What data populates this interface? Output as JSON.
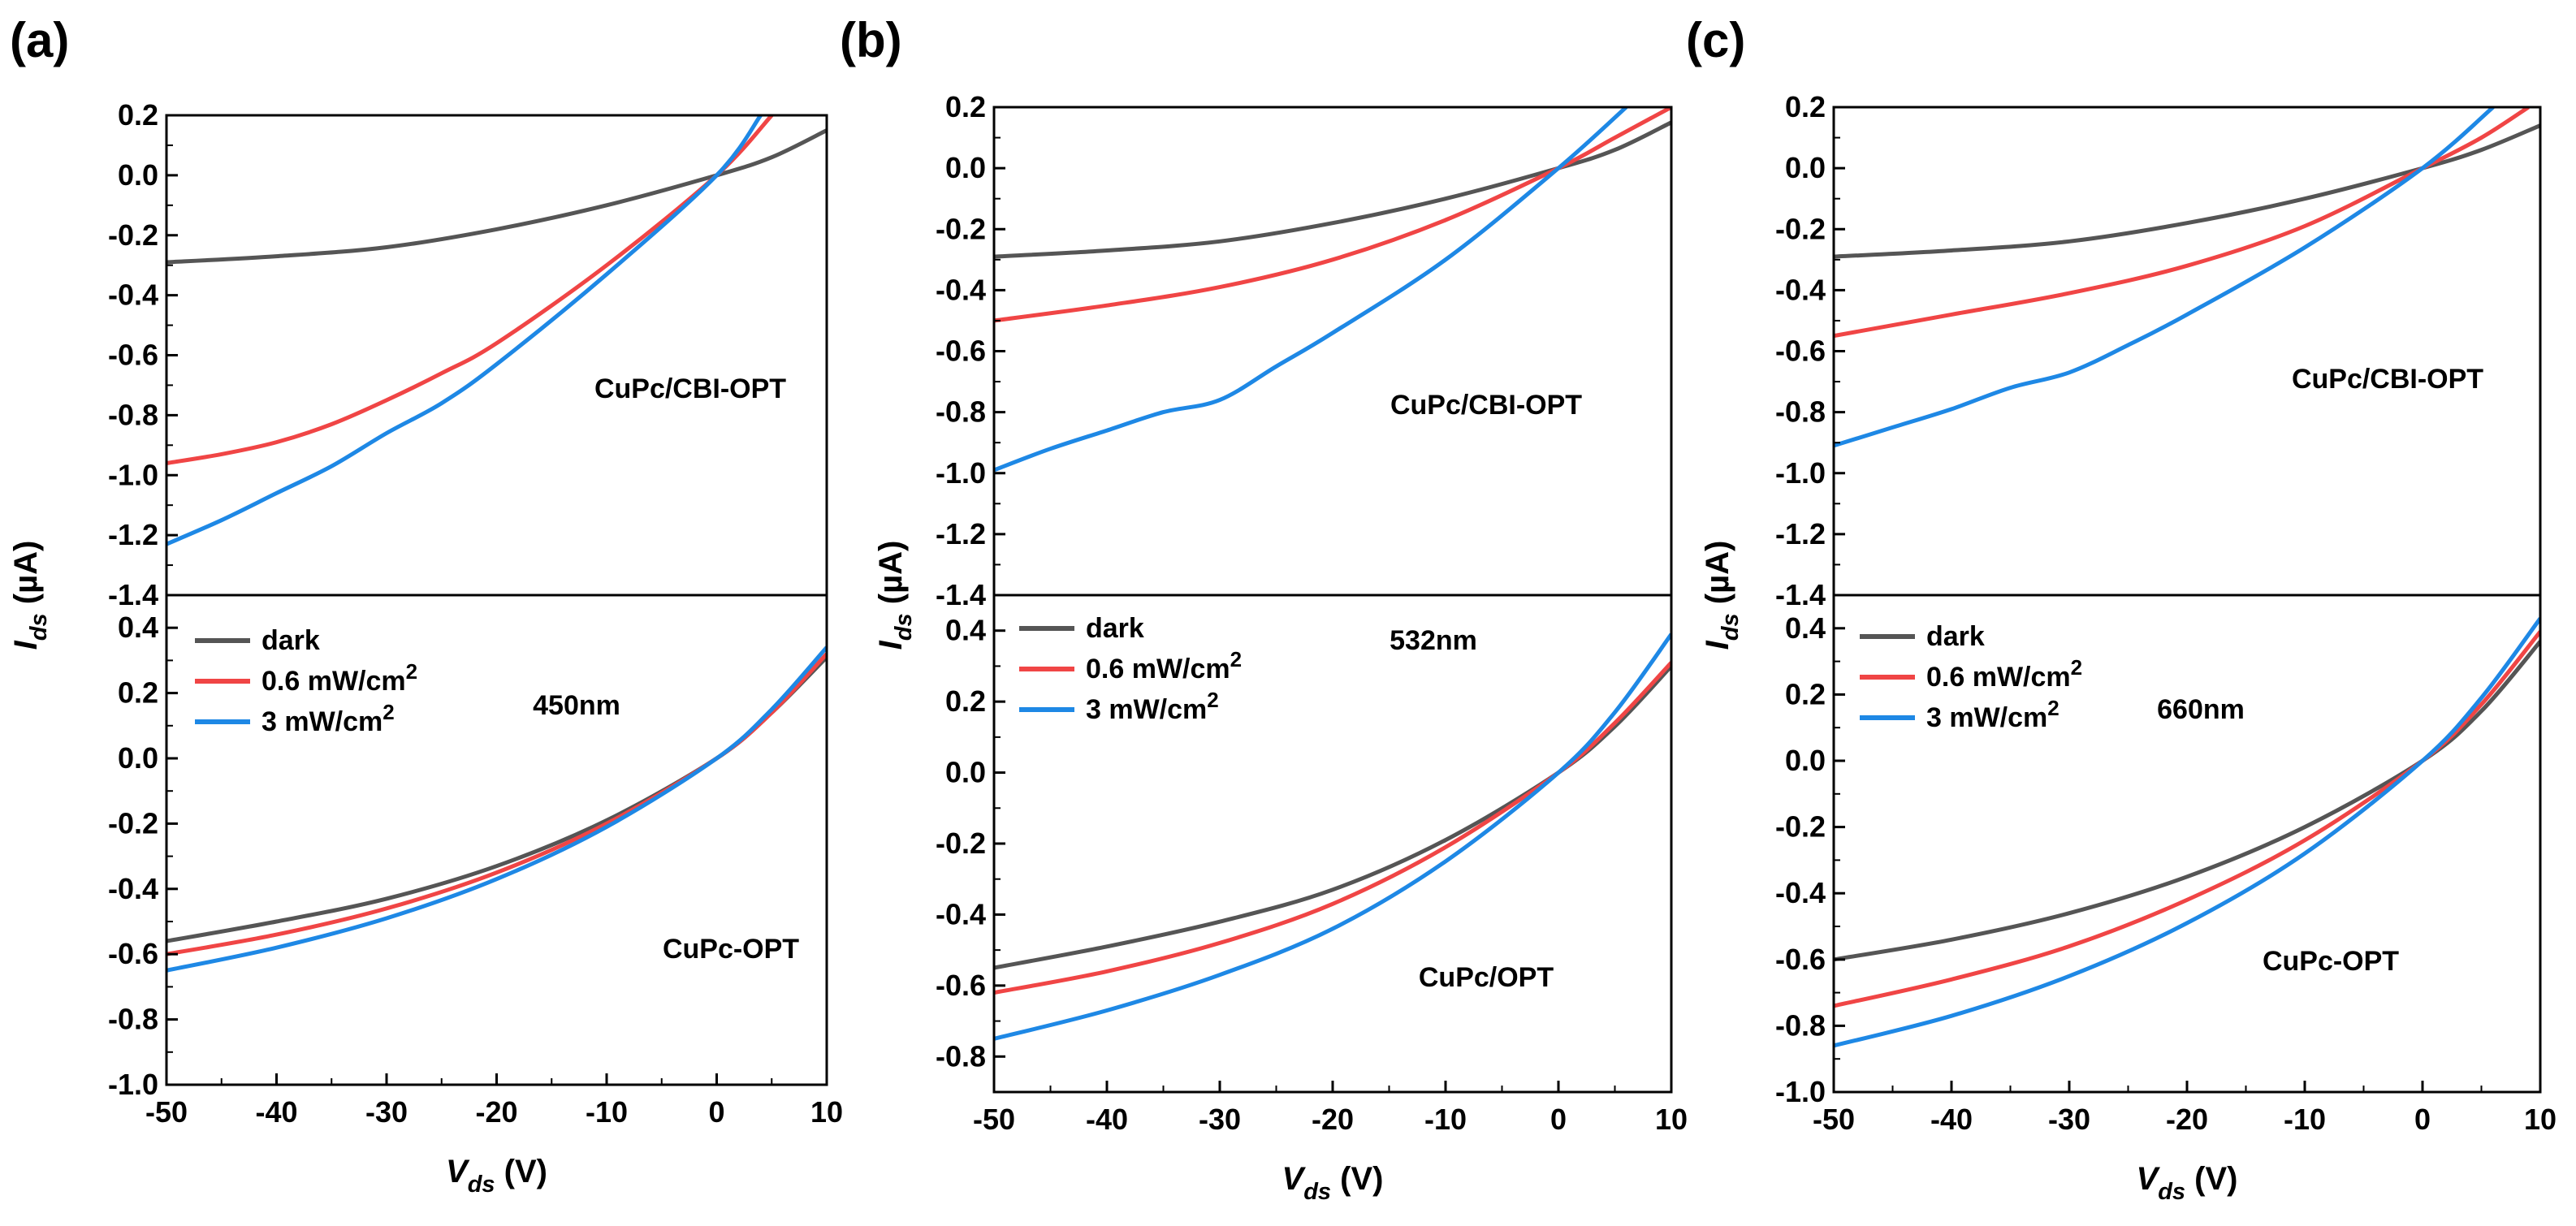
{
  "chart_data": [
    {
      "id": "a",
      "panel_label": "(a)",
      "type": "line",
      "xlabel": "V",
      "xlabel_sub": "ds",
      "xlabel_unit": " (V)",
      "ylabel": "I",
      "ylabel_sub": "ds",
      "ylabel_unit": " (µA)",
      "xlim": [
        -50,
        10
      ],
      "x_ticks": [
        -50,
        -40,
        -30,
        -20,
        -10,
        0,
        10
      ],
      "x_tick_labels": [
        "-50",
        "-40",
        "-30",
        "-20",
        "-10",
        "0",
        "10"
      ],
      "top": {
        "annotation": "CuPc/CBI-OPT",
        "ylim": [
          -1.4,
          0.2
        ],
        "y_ticks": [
          -1.4,
          -1.2,
          -1.0,
          -0.8,
          -0.6,
          -0.4,
          -0.2,
          0.0,
          0.2
        ],
        "y_tick_labels": [
          "-1.4",
          "-1.2",
          "-1.0",
          "-0.8",
          "-0.6",
          "-0.4",
          "-0.2",
          "0.0",
          "0.2"
        ],
        "series": [
          {
            "name": "dark",
            "color": "#555555",
            "x": [
              -50,
              -40,
              -30,
              -20,
              -10,
              0,
              5,
              10
            ],
            "y": [
              -0.29,
              -0.27,
              -0.24,
              -0.18,
              -0.1,
              0,
              0.06,
              0.15
            ]
          },
          {
            "name": "0.6 mW/cm2",
            "color": "#f04545",
            "x": [
              -50,
              -45,
              -40,
              -35,
              -30,
              -25,
              -20,
              -10,
              0,
              5
            ],
            "y": [
              -0.96,
              -0.93,
              -0.89,
              -0.83,
              -0.75,
              -0.66,
              -0.56,
              -0.3,
              0,
              0.2
            ]
          },
          {
            "name": "3 mW/cm2",
            "color": "#1e88e5",
            "x": [
              -50,
              -45,
              -40,
              -35,
              -30,
              -25,
              -20,
              -10,
              0,
              4
            ],
            "y": [
              -1.23,
              -1.15,
              -1.06,
              -0.97,
              -0.86,
              -0.76,
              -0.63,
              -0.33,
              0,
              0.2
            ]
          }
        ]
      },
      "bottom": {
        "annotation": "CuPc-OPT",
        "wavelength": "450nm",
        "ylim": [
          -1.0,
          0.5
        ],
        "y_ticks": [
          -1.0,
          -0.8,
          -0.6,
          -0.4,
          -0.2,
          0.0,
          0.2,
          0.4
        ],
        "y_tick_labels": [
          "-1.0",
          "-0.8",
          "-0.6",
          "-0.4",
          "-0.2",
          "0.0",
          "0.2",
          "0.4"
        ],
        "series": [
          {
            "name": "dark",
            "color": "#555555",
            "x": [
              -50,
              -40,
              -30,
              -20,
              -10,
              0,
              5,
              10
            ],
            "y": [
              -0.56,
              -0.5,
              -0.43,
              -0.33,
              -0.19,
              0,
              0.14,
              0.31
            ]
          },
          {
            "name": "0.6 mW/cm2",
            "color": "#f04545",
            "x": [
              -50,
              -40,
              -30,
              -20,
              -10,
              0,
              5,
              10
            ],
            "y": [
              -0.6,
              -0.54,
              -0.46,
              -0.35,
              -0.2,
              0,
              0.14,
              0.32
            ]
          },
          {
            "name": "3 mW/cm2",
            "color": "#1e88e5",
            "x": [
              -50,
              -40,
              -30,
              -20,
              -10,
              0,
              5,
              10
            ],
            "y": [
              -0.65,
              -0.58,
              -0.49,
              -0.37,
              -0.21,
              0,
              0.15,
              0.34
            ]
          }
        ]
      }
    },
    {
      "id": "b",
      "panel_label": "(b)",
      "type": "line",
      "xlabel": "V",
      "xlabel_sub": "ds",
      "xlabel_unit": " (V)",
      "ylabel": "I",
      "ylabel_sub": "ds",
      "ylabel_unit": " (µA)",
      "xlim": [
        -50,
        10
      ],
      "x_ticks": [
        -50,
        -40,
        -30,
        -20,
        -10,
        0,
        10
      ],
      "x_tick_labels": [
        "-50",
        "-40",
        "-30",
        "-20",
        "-10",
        "0",
        "10"
      ],
      "top": {
        "annotation": "CuPc/CBI-OPT",
        "ylim": [
          -1.4,
          0.2
        ],
        "y_ticks": [
          -1.4,
          -1.2,
          -1.0,
          -0.8,
          -0.6,
          -0.4,
          -0.2,
          0.0,
          0.2
        ],
        "y_tick_labels": [
          "-1.4",
          "-1.2",
          "-1.0",
          "-0.8",
          "-0.6",
          "-0.4",
          "-0.2",
          "0.0",
          "0.2"
        ],
        "series": [
          {
            "name": "dark",
            "color": "#555555",
            "x": [
              -50,
              -40,
              -30,
              -20,
              -10,
              0,
              5,
              10
            ],
            "y": [
              -0.29,
              -0.27,
              -0.24,
              -0.18,
              -0.1,
              0,
              0.06,
              0.15
            ]
          },
          {
            "name": "0.6 mW/cm2",
            "color": "#f04545",
            "x": [
              -50,
              -40,
              -30,
              -20,
              -10,
              0,
              5,
              10
            ],
            "y": [
              -0.5,
              -0.45,
              -0.39,
              -0.3,
              -0.17,
              0,
              0.1,
              0.2
            ]
          },
          {
            "name": "3 mW/cm2",
            "color": "#1e88e5",
            "x": [
              -50,
              -45,
              -40,
              -35,
              -30,
              -25,
              -20,
              -10,
              0,
              6
            ],
            "y": [
              -0.99,
              -0.92,
              -0.86,
              -0.8,
              -0.76,
              -0.65,
              -0.54,
              -0.3,
              0,
              0.2
            ]
          }
        ]
      },
      "bottom": {
        "annotation": "CuPc/OPT",
        "wavelength": "532nm",
        "ylim": [
          -0.9,
          0.5
        ],
        "y_ticks": [
          -0.8,
          -0.6,
          -0.4,
          -0.2,
          0.0,
          0.2,
          0.4
        ],
        "y_tick_labels": [
          "-0.8",
          "-0.6",
          "-0.4",
          "-0.2",
          "0.0",
          "0.2",
          "0.4"
        ],
        "series": [
          {
            "name": "dark",
            "color": "#555555",
            "x": [
              -50,
              -40,
              -30,
              -20,
              -10,
              0,
              5,
              10
            ],
            "y": [
              -0.55,
              -0.49,
              -0.42,
              -0.33,
              -0.19,
              0,
              0.13,
              0.3
            ]
          },
          {
            "name": "0.6 mW/cm2",
            "color": "#f04545",
            "x": [
              -50,
              -40,
              -30,
              -20,
              -10,
              0,
              5,
              10
            ],
            "y": [
              -0.62,
              -0.56,
              -0.48,
              -0.37,
              -0.21,
              0,
              0.14,
              0.31
            ]
          },
          {
            "name": "3 mW/cm2",
            "color": "#1e88e5",
            "x": [
              -50,
              -40,
              -30,
              -20,
              -10,
              0,
              5,
              10
            ],
            "y": [
              -0.75,
              -0.67,
              -0.57,
              -0.44,
              -0.25,
              0,
              0.17,
              0.39
            ]
          }
        ]
      }
    },
    {
      "id": "c",
      "panel_label": "(c)",
      "type": "line",
      "xlabel": "V",
      "xlabel_sub": "ds",
      "xlabel_unit": " (V)",
      "ylabel": "I",
      "ylabel_sub": "ds",
      "ylabel_unit": " (µA)",
      "xlim": [
        -50,
        10
      ],
      "x_ticks": [
        -50,
        -40,
        -30,
        -20,
        -10,
        0,
        10
      ],
      "x_tick_labels": [
        "-50",
        "-40",
        "-30",
        "-20",
        "-10",
        "0",
        "10"
      ],
      "top": {
        "annotation": "CuPc/CBI-OPT",
        "ylim": [
          -1.4,
          0.2
        ],
        "y_ticks": [
          -1.4,
          -1.2,
          -1.0,
          -0.8,
          -0.6,
          -0.4,
          -0.2,
          0.0,
          0.2
        ],
        "y_tick_labels": [
          "-1.4",
          "-1.2",
          "-1.0",
          "-0.8",
          "-0.6",
          "-0.4",
          "-0.2",
          "0.0",
          "0.2"
        ],
        "series": [
          {
            "name": "dark",
            "color": "#555555",
            "x": [
              -50,
              -40,
              -30,
              -20,
              -10,
              0,
              5,
              10
            ],
            "y": [
              -0.29,
              -0.27,
              -0.24,
              -0.18,
              -0.1,
              0,
              0.06,
              0.14
            ]
          },
          {
            "name": "0.6 mW/cm2",
            "color": "#f04545",
            "x": [
              -50,
              -40,
              -30,
              -20,
              -10,
              0,
              5,
              9
            ],
            "y": [
              -0.55,
              -0.48,
              -0.41,
              -0.32,
              -0.19,
              0,
              0.1,
              0.2
            ]
          },
          {
            "name": "3 mW/cm2",
            "color": "#1e88e5",
            "x": [
              -50,
              -45,
              -40,
              -35,
              -30,
              -25,
              -20,
              -10,
              0,
              6
            ],
            "y": [
              -0.91,
              -0.85,
              -0.79,
              -0.72,
              -0.67,
              -0.58,
              -0.48,
              -0.26,
              0,
              0.2
            ]
          }
        ]
      },
      "bottom": {
        "annotation": "CuPc-OPT",
        "wavelength": "660nm",
        "ylim": [
          -1.0,
          0.5
        ],
        "y_ticks": [
          -1.0,
          -0.8,
          -0.6,
          -0.4,
          -0.2,
          0.0,
          0.2,
          0.4
        ],
        "y_tick_labels": [
          "-1.0",
          "-0.8",
          "-0.6",
          "-0.4",
          "-0.2",
          "0.0",
          "0.2",
          "0.4"
        ],
        "series": [
          {
            "name": "dark",
            "color": "#555555",
            "x": [
              -50,
              -40,
              -30,
              -20,
              -10,
              0,
              5,
              10
            ],
            "y": [
              -0.6,
              -0.54,
              -0.46,
              -0.35,
              -0.2,
              0,
              0.15,
              0.36
            ]
          },
          {
            "name": "0.6 mW/cm2",
            "color": "#f04545",
            "x": [
              -50,
              -40,
              -30,
              -20,
              -10,
              0,
              5,
              10
            ],
            "y": [
              -0.74,
              -0.66,
              -0.56,
              -0.42,
              -0.24,
              0,
              0.17,
              0.39
            ]
          },
          {
            "name": "3 mW/cm2",
            "color": "#1e88e5",
            "x": [
              -50,
              -40,
              -30,
              -20,
              -10,
              0,
              5,
              10
            ],
            "y": [
              -0.86,
              -0.77,
              -0.65,
              -0.49,
              -0.28,
              0,
              0.19,
              0.43
            ]
          }
        ]
      }
    }
  ],
  "legend": {
    "items": [
      {
        "label": "dark",
        "sup": "",
        "color": "#555555"
      },
      {
        "label": "0.6 mW/cm",
        "sup": "2",
        "color": "#f04545"
      },
      {
        "label": "3 mW/cm",
        "sup": "2",
        "color": "#1e88e5"
      }
    ]
  }
}
